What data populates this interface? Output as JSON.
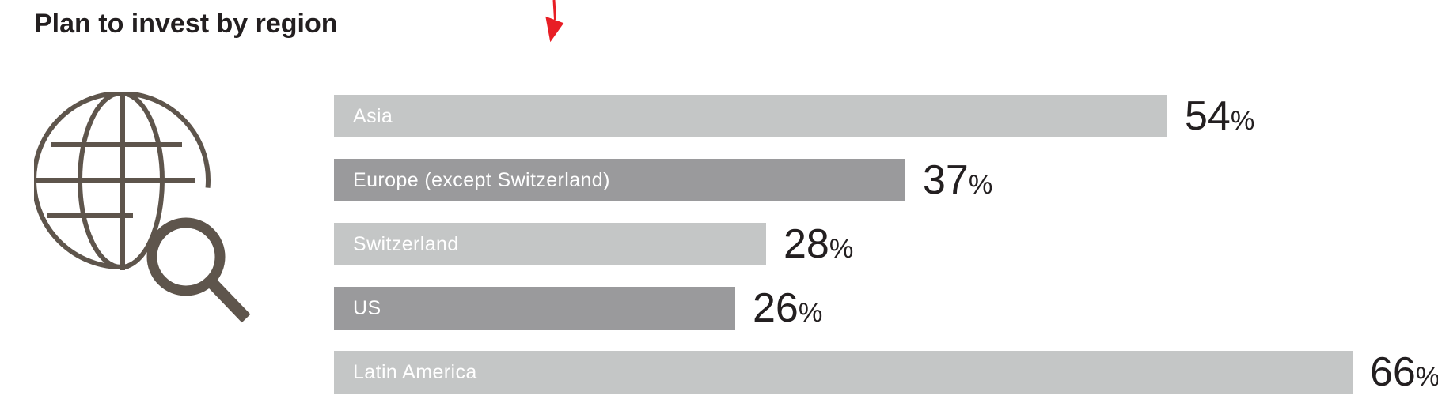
{
  "title": "Plan to invest by region",
  "icons": {
    "globe_magnifier": "globe-with-magnifying-glass",
    "arrow": "red-down-arrow"
  },
  "colors": {
    "background": "#ffffff",
    "bar_light": "#c4c6c6",
    "bar_dark": "#9a9a9c",
    "bar_label_text": "#ffffff",
    "value_text": "#231f20",
    "title_text": "#231f20",
    "icon": "#5e554c",
    "arrow": "#e81e25"
  },
  "chart_data": {
    "type": "bar",
    "orientation": "horizontal",
    "title": "Plan to invest by region",
    "categories": [
      "Asia",
      "Europe (except Switzerland)",
      "Switzerland",
      "US",
      "Latin America"
    ],
    "values": [
      54,
      37,
      28,
      26,
      66
    ],
    "value_suffix": "%",
    "bar_styles": [
      "light",
      "dark",
      "light",
      "dark",
      "light"
    ],
    "xlim": [
      0,
      70
    ],
    "grid": false,
    "legend": false,
    "value_label_position": "outside-end",
    "category_label_position": "inside-start"
  }
}
